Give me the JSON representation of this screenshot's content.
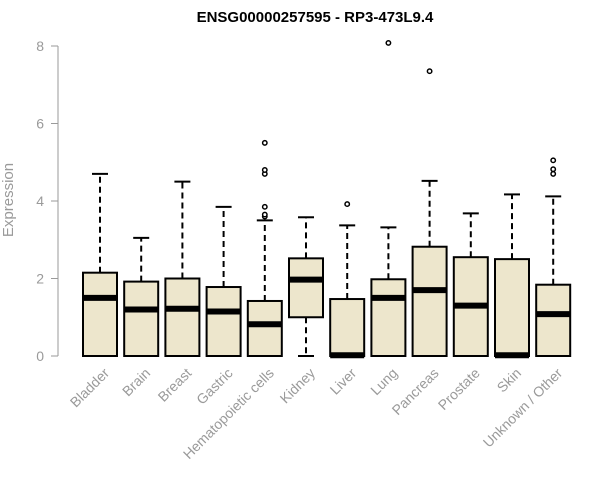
{
  "chart_data": {
    "type": "boxplot",
    "title": "ENSG00000257595 - RP3-473L9.4",
    "xlabel": "",
    "ylabel": "Expression",
    "ylim": [
      0,
      8
    ],
    "yticks": [
      0,
      2,
      4,
      6,
      8
    ],
    "box_color": "#ede6cc",
    "categories": [
      "Bladder",
      "Brain",
      "Breast",
      "Gastric",
      "Hematopoietic cells",
      "Kidney",
      "Liver",
      "Lung",
      "Pancreas",
      "Prostate",
      "Skin",
      "Unknown / Other"
    ],
    "boxes": [
      {
        "name": "Bladder",
        "whisker_low": 0,
        "q1": 0,
        "median": 1.5,
        "q3": 2.15,
        "whisker_high": 4.7,
        "outliers": []
      },
      {
        "name": "Brain",
        "whisker_low": 0,
        "q1": 0,
        "median": 1.2,
        "q3": 1.92,
        "whisker_high": 3.05,
        "outliers": []
      },
      {
        "name": "Breast",
        "whisker_low": 0,
        "q1": 0,
        "median": 1.22,
        "q3": 2.0,
        "whisker_high": 4.5,
        "outliers": []
      },
      {
        "name": "Gastric",
        "whisker_low": 0,
        "q1": 0,
        "median": 1.15,
        "q3": 1.78,
        "whisker_high": 3.85,
        "outliers": []
      },
      {
        "name": "Hematopoietic cells",
        "whisker_low": 0,
        "q1": 0,
        "median": 0.82,
        "q3": 1.42,
        "whisker_high": 3.5,
        "outliers": [
          3.6,
          3.65,
          3.85,
          4.7,
          4.8,
          5.5
        ]
      },
      {
        "name": "Kidney",
        "whisker_low": 0,
        "q1": 1.0,
        "median": 1.97,
        "q3": 2.52,
        "whisker_high": 3.58,
        "outliers": []
      },
      {
        "name": "Liver",
        "whisker_low": 0,
        "q1": 0,
        "median": 0.02,
        "q3": 1.47,
        "whisker_high": 3.37,
        "outliers": [
          3.92
        ]
      },
      {
        "name": "Lung",
        "whisker_low": 0,
        "q1": 0,
        "median": 1.5,
        "q3": 1.98,
        "whisker_high": 3.32,
        "outliers": [
          8.08
        ]
      },
      {
        "name": "Pancreas",
        "whisker_low": 0,
        "q1": 0,
        "median": 1.7,
        "q3": 2.82,
        "whisker_high": 4.52,
        "outliers": [
          7.35
        ]
      },
      {
        "name": "Prostate",
        "whisker_low": 0,
        "q1": 0,
        "median": 1.3,
        "q3": 2.55,
        "whisker_high": 3.68,
        "outliers": []
      },
      {
        "name": "Skin",
        "whisker_low": 0,
        "q1": 0,
        "median": 0.02,
        "q3": 2.5,
        "whisker_high": 4.17,
        "outliers": []
      },
      {
        "name": "Unknown / Other",
        "whisker_low": 0,
        "q1": 0,
        "median": 1.08,
        "q3": 1.84,
        "whisker_high": 4.12,
        "outliers": [
          4.7,
          4.82,
          5.05
        ]
      }
    ]
  }
}
